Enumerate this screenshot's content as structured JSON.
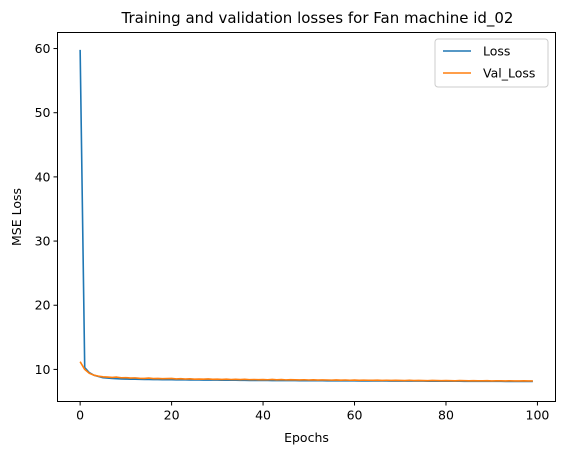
{
  "chart_data": {
    "type": "line",
    "title": "Training and validation losses for Fan machine id_02",
    "xlabel": "Epochs",
    "ylabel": "MSE Loss",
    "xlim": [
      -4.95,
      103.95
    ],
    "ylim": [
      5.0,
      62.5
    ],
    "xticks": [
      0,
      20,
      40,
      60,
      80,
      100
    ],
    "yticks": [
      10,
      20,
      30,
      40,
      50,
      60
    ],
    "grid": false,
    "legend_position": "upper-right",
    "series": [
      {
        "name": "Loss",
        "color": "#1f77b4",
        "x": [
          0,
          1,
          2,
          3,
          4,
          5,
          6,
          7,
          8,
          9,
          10,
          11,
          12,
          13,
          14,
          15,
          16,
          17,
          18,
          19,
          20,
          21,
          22,
          23,
          24,
          25,
          26,
          27,
          28,
          29,
          30,
          31,
          32,
          33,
          34,
          35,
          36,
          37,
          38,
          39,
          40,
          41,
          42,
          43,
          44,
          45,
          46,
          47,
          48,
          49,
          50,
          51,
          52,
          53,
          54,
          55,
          56,
          57,
          58,
          59,
          60,
          61,
          62,
          63,
          64,
          65,
          66,
          67,
          68,
          69,
          70,
          71,
          72,
          73,
          74,
          75,
          76,
          77,
          78,
          79,
          80,
          81,
          82,
          83,
          84,
          85,
          86,
          87,
          88,
          89,
          90,
          91,
          92,
          93,
          94,
          95,
          96,
          97,
          98,
          99
        ],
        "y": [
          59.8,
          10.3,
          9.5,
          9.1,
          8.9,
          8.7,
          8.65,
          8.6,
          8.55,
          8.52,
          8.5,
          8.48,
          8.47,
          8.45,
          8.44,
          8.43,
          8.42,
          8.41,
          8.4,
          8.4,
          8.39,
          8.38,
          8.37,
          8.37,
          8.36,
          8.35,
          8.35,
          8.34,
          8.34,
          8.33,
          8.33,
          8.32,
          8.32,
          8.31,
          8.31,
          8.3,
          8.3,
          8.29,
          8.29,
          8.29,
          8.28,
          8.28,
          8.27,
          8.27,
          8.27,
          8.26,
          8.26,
          8.26,
          8.25,
          8.25,
          8.25,
          8.24,
          8.24,
          8.24,
          8.23,
          8.23,
          8.23,
          8.22,
          8.22,
          8.22,
          8.22,
          8.21,
          8.21,
          8.21,
          8.2,
          8.2,
          8.2,
          8.2,
          8.19,
          8.19,
          8.19,
          8.19,
          8.18,
          8.18,
          8.18,
          8.18,
          8.17,
          8.17,
          8.17,
          8.17,
          8.16,
          8.16,
          8.16,
          8.16,
          8.15,
          8.15,
          8.15,
          8.15,
          8.15,
          8.14,
          8.14,
          8.14,
          8.14,
          8.13,
          8.13,
          8.13,
          8.13,
          8.13,
          8.12,
          8.12
        ]
      },
      {
        "name": "Val_Loss",
        "color": "#ff7f0e",
        "x": [
          0,
          1,
          2,
          3,
          4,
          5,
          6,
          7,
          8,
          9,
          10,
          11,
          12,
          13,
          14,
          15,
          16,
          17,
          18,
          19,
          20,
          21,
          22,
          23,
          24,
          25,
          26,
          27,
          28,
          29,
          30,
          31,
          32,
          33,
          34,
          35,
          36,
          37,
          38,
          39,
          40,
          41,
          42,
          43,
          44,
          45,
          46,
          47,
          48,
          49,
          50,
          51,
          52,
          53,
          54,
          55,
          56,
          57,
          58,
          59,
          60,
          61,
          62,
          63,
          64,
          65,
          66,
          67,
          68,
          69,
          70,
          71,
          72,
          73,
          74,
          75,
          76,
          77,
          78,
          79,
          80,
          81,
          82,
          83,
          84,
          85,
          86,
          87,
          88,
          89,
          90,
          91,
          92,
          93,
          94,
          95,
          96,
          97,
          98,
          99
        ],
        "y": [
          11.2,
          10.0,
          9.4,
          9.1,
          8.95,
          8.85,
          8.8,
          8.75,
          8.8,
          8.7,
          8.72,
          8.65,
          8.68,
          8.62,
          8.6,
          8.65,
          8.58,
          8.6,
          8.55,
          8.57,
          8.6,
          8.52,
          8.55,
          8.5,
          8.53,
          8.48,
          8.5,
          8.47,
          8.52,
          8.46,
          8.48,
          8.44,
          8.47,
          8.43,
          8.45,
          8.42,
          8.46,
          8.41,
          8.43,
          8.4,
          8.42,
          8.39,
          8.44,
          8.38,
          8.42,
          8.37,
          8.4,
          8.38,
          8.36,
          8.39,
          8.35,
          8.38,
          8.34,
          8.37,
          8.35,
          8.33,
          8.36,
          8.32,
          8.35,
          8.31,
          8.34,
          8.3,
          8.33,
          8.31,
          8.3,
          8.32,
          8.29,
          8.31,
          8.28,
          8.3,
          8.29,
          8.27,
          8.3,
          8.26,
          8.28,
          8.27,
          8.25,
          8.28,
          8.26,
          8.24,
          8.27,
          8.25,
          8.23,
          8.26,
          8.24,
          8.22,
          8.25,
          8.23,
          8.22,
          8.24,
          8.21,
          8.23,
          8.22,
          8.2,
          8.23,
          8.21,
          8.2,
          8.22,
          8.21,
          8.2
        ]
      }
    ]
  }
}
